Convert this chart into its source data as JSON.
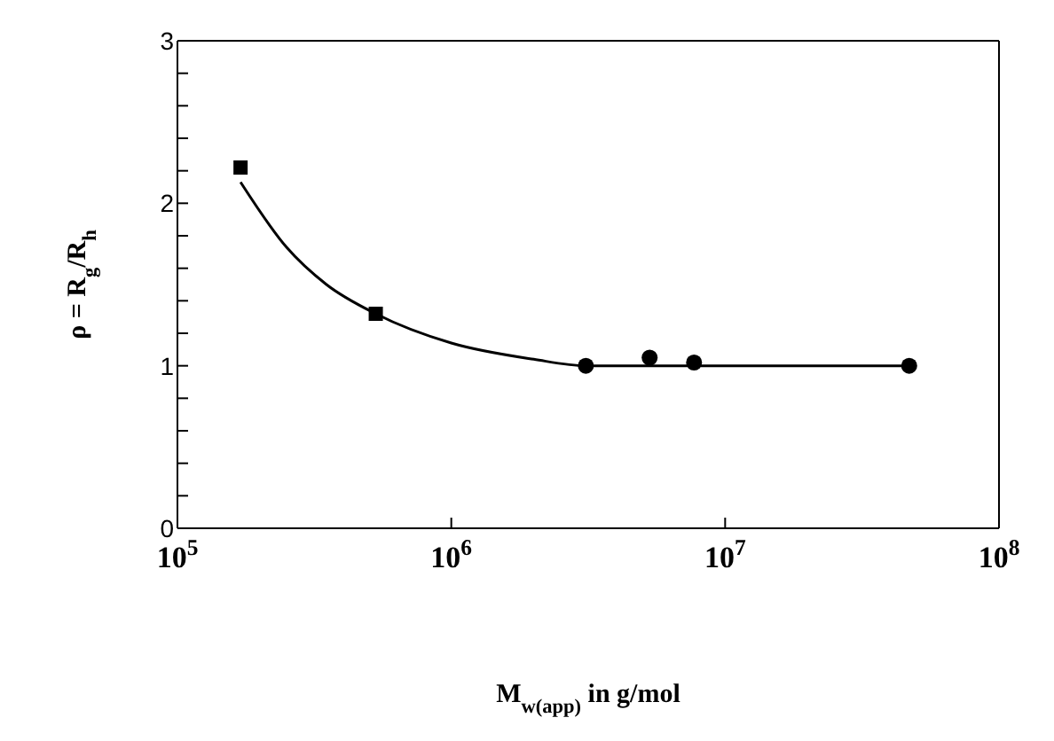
{
  "chart_data": {
    "type": "scatter",
    "xlabel": "M$_{w(app)}$  in g/mol",
    "ylabel": "ρ = R$_{g}$/R$_{h}$",
    "log": "x",
    "xlim": [
      100000,
      100000000
    ],
    "xticks": [
      {
        "value": 100000,
        "label": "10$^{5}$"
      },
      {
        "value": 1000000,
        "label": "10$^{6}$"
      },
      {
        "value": 10000000,
        "label": "10$^{7}$"
      },
      {
        "value": 100000000,
        "label": "10$^{8}$"
      }
    ],
    "ylim": [
      0,
      3
    ],
    "yticks": [
      0,
      {
        "value": 0.2,
        "label": null
      },
      {
        "value": 0.4,
        "label": null
      },
      {
        "value": 0.6,
        "label": null
      },
      {
        "value": 0.8,
        "label": null
      },
      1,
      {
        "value": 1.2,
        "label": null
      },
      {
        "value": 1.4,
        "label": null
      },
      {
        "value": 1.6,
        "label": null
      },
      {
        "value": 1.8,
        "label": null
      },
      2,
      {
        "value": 2.2,
        "label": null
      },
      {
        "value": 2.4,
        "label": null
      },
      {
        "value": 2.6,
        "label": null
      },
      {
        "value": 2.8,
        "label": null
      },
      3
    ],
    "grid": false,
    "series": [
      {
        "type": "line",
        "color": "#000000",
        "marker": "none",
        "x": [
          170000,
          250000,
          350000,
          530000,
          1000000,
          2000000,
          3100000,
          47000000
        ],
        "values": [
          2.13,
          1.73,
          1.5,
          1.32,
          1.14,
          1.04,
          1.0,
          1.0
        ]
      },
      {
        "color": "#000000",
        "marker": "square",
        "x": [
          170000
        ],
        "values": [
          2.22
        ]
      },
      {
        "color": "#000000",
        "marker": "square",
        "x": [
          530000
        ],
        "values": [
          1.32
        ]
      },
      {
        "color": "#000000",
        "marker": "circle",
        "x": [
          3100000,
          7700000
        ],
        "values": [
          1.0,
          1.02
        ]
      },
      {
        "color": "#000000",
        "marker": "circle",
        "x": [
          5300000,
          47000000
        ],
        "values": [
          1.05,
          1.0
        ]
      }
    ]
  }
}
